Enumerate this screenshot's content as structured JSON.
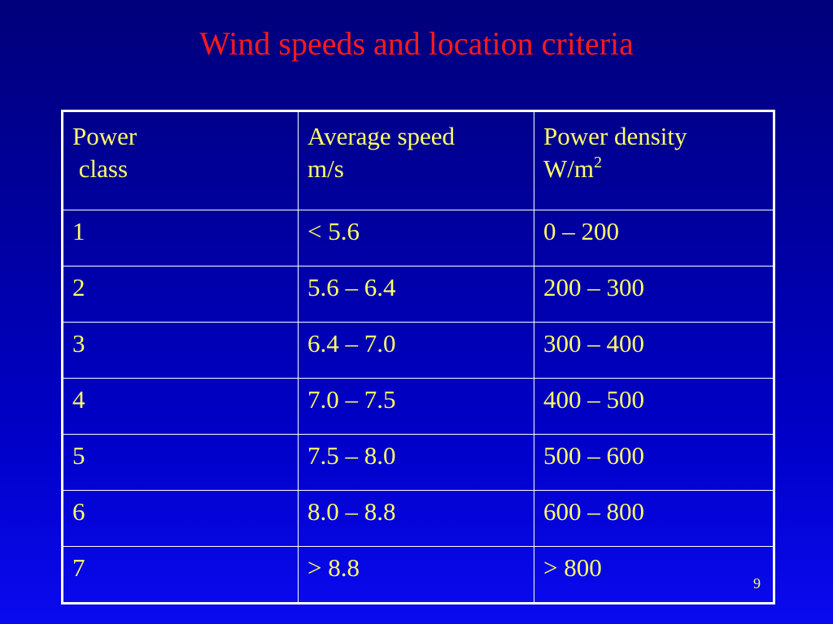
{
  "title": "Wind speeds and location criteria",
  "table": {
    "headers": [
      {
        "line1": "Power",
        "line2": " class",
        "sup": ""
      },
      {
        "line1": "Average speed",
        "line2": "m/s",
        "sup": ""
      },
      {
        "line1": "Power density",
        "line2": "W/m",
        "sup": "2"
      }
    ],
    "rows": [
      [
        "1",
        "< 5.6",
        "0 – 200"
      ],
      [
        "2",
        "5.6 – 6.4",
        "200 – 300"
      ],
      [
        "3",
        "6.4 – 7.0",
        "300 – 400"
      ],
      [
        "4",
        "7.0 – 7.5",
        "400 – 500"
      ],
      [
        "5",
        "7.5 – 8.0",
        "500 – 600"
      ],
      [
        "6",
        "8.0 – 8.8",
        "600 – 800"
      ],
      [
        "7",
        "> 8.8",
        "> 800"
      ]
    ]
  },
  "page_number": "9",
  "colors": {
    "background": "#0000a8",
    "title": "#ff1a1a",
    "text": "#ffff66",
    "border": "#ffffff"
  }
}
